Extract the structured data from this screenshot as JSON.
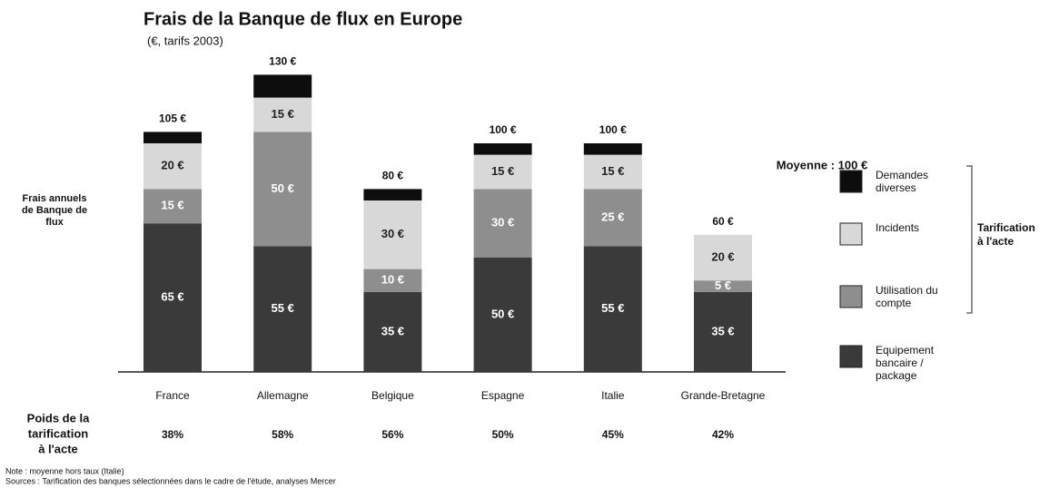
{
  "chart_data": {
    "type": "stacked_bar",
    "title": "Frais de la Banque de flux en Europe",
    "subtitle": "(€, tarifs 2003)",
    "y_label": [
      "Frais annuels",
      "de Banque de",
      "flux"
    ],
    "categories": [
      "France",
      "Allemagne",
      "Belgique",
      "Espagne",
      "Italie",
      "Grande-Bretagne"
    ],
    "series": [
      {
        "name": "Equipement bancaire / package",
        "color": "#3a3a3a",
        "values": [
          65,
          55,
          35,
          50,
          55,
          35
        ],
        "value_labels": [
          "65 €",
          "55 €",
          "35 €",
          "50 €",
          "55 €",
          "35 €"
        ]
      },
      {
        "name": "Utilisation du compte",
        "color": "#8e8e8e",
        "values": [
          15,
          50,
          10,
          30,
          25,
          5
        ],
        "value_labels": [
          "15 €",
          "50 €",
          "10 €",
          "30 €",
          "25 €",
          "5 €"
        ]
      },
      {
        "name": "Incidents",
        "color": "#d8d8d8",
        "values": [
          20,
          15,
          30,
          15,
          15,
          20
        ],
        "value_labels": [
          "20 €",
          "15 €",
          "30 €",
          "15 €",
          "15 €",
          "20 €"
        ]
      },
      {
        "name": "Demandes diverses",
        "color": "#0d0d0d",
        "values": [
          5,
          10,
          5,
          5,
          5,
          0
        ],
        "value_labels": [
          null,
          null,
          null,
          null,
          null,
          null
        ]
      }
    ],
    "totals": [
      105,
      130,
      80,
      100,
      100,
      60
    ],
    "total_labels": [
      "105 €",
      "130 €",
      "80 €",
      "100 €",
      "100 €",
      "60 €"
    ],
    "average_label": "Moyenne : 100 €",
    "bracket_label": [
      "Tarification",
      "à l'acte"
    ],
    "weights": {
      "label": [
        "Poids de la",
        "tarification",
        "à l'acte"
      ],
      "values": [
        38,
        58,
        56,
        50,
        45,
        42
      ],
      "value_labels": [
        "38%",
        "58%",
        "56%",
        "50%",
        "45%",
        "42%"
      ]
    },
    "notes": [
      "Note : moyenne hors taux (Italie)",
      "Sources : Tarification des banques sélectionnées dans le cadre de l'étude, analyses Mercer"
    ]
  }
}
